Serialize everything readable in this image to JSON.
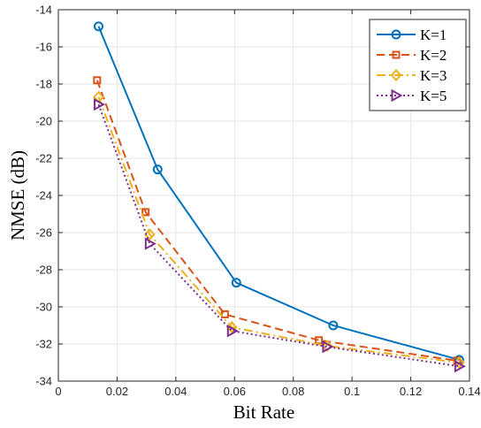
{
  "chart_data": {
    "type": "line",
    "title": "",
    "xlabel": "Bit Rate",
    "ylabel": "NMSE (dB)",
    "xlim": [
      0,
      0.14
    ],
    "ylim": [
      -34,
      -14
    ],
    "xticks": [
      0,
      0.02,
      0.04,
      0.06,
      0.08,
      0.1,
      0.12,
      0.14
    ],
    "yticks": [
      -34,
      -32,
      -30,
      -28,
      -26,
      -24,
      -22,
      -20,
      -18,
      -16,
      -14
    ],
    "xtick_labels": [
      "0",
      "0.02",
      "0.04",
      "0.06",
      "0.08",
      "0.1",
      "0.12",
      "0.14"
    ],
    "ytick_labels": [
      "-34",
      "-32",
      "-30",
      "-28",
      "-26",
      "-24",
      "-22",
      "-20",
      "-18",
      "-16",
      "-14"
    ],
    "grid": true,
    "legend_position": "top-right",
    "series": [
      {
        "name": "K=1",
        "color": "#0072BD",
        "line": "solid",
        "marker": "circle",
        "x": [
          0.0137,
          0.0338,
          0.0606,
          0.0936,
          0.1365
        ],
        "y": [
          -14.9,
          -22.6,
          -28.7,
          -31.0,
          -32.85
        ]
      },
      {
        "name": "K=2",
        "color": "#D95319",
        "line": "dashed",
        "marker": "square",
        "x": [
          0.0132,
          0.0297,
          0.0567,
          0.0887,
          0.1358
        ],
        "y": [
          -17.8,
          -24.9,
          -30.4,
          -31.8,
          -32.9
        ]
      },
      {
        "name": "K=3",
        "color": "#EDB120",
        "line": "dashdot",
        "marker": "diamond",
        "x": [
          0.0137,
          0.0311,
          0.0591,
          0.0915,
          0.1365
        ],
        "y": [
          -18.7,
          -26.1,
          -31.1,
          -32.1,
          -33.0
        ]
      },
      {
        "name": "K=5",
        "color": "#7E2F8E",
        "line": "dotted",
        "marker": "triangle-right",
        "x": [
          0.0137,
          0.0311,
          0.0591,
          0.0915,
          0.1365
        ],
        "y": [
          -19.1,
          -26.6,
          -31.3,
          -32.15,
          -33.2
        ]
      }
    ]
  }
}
